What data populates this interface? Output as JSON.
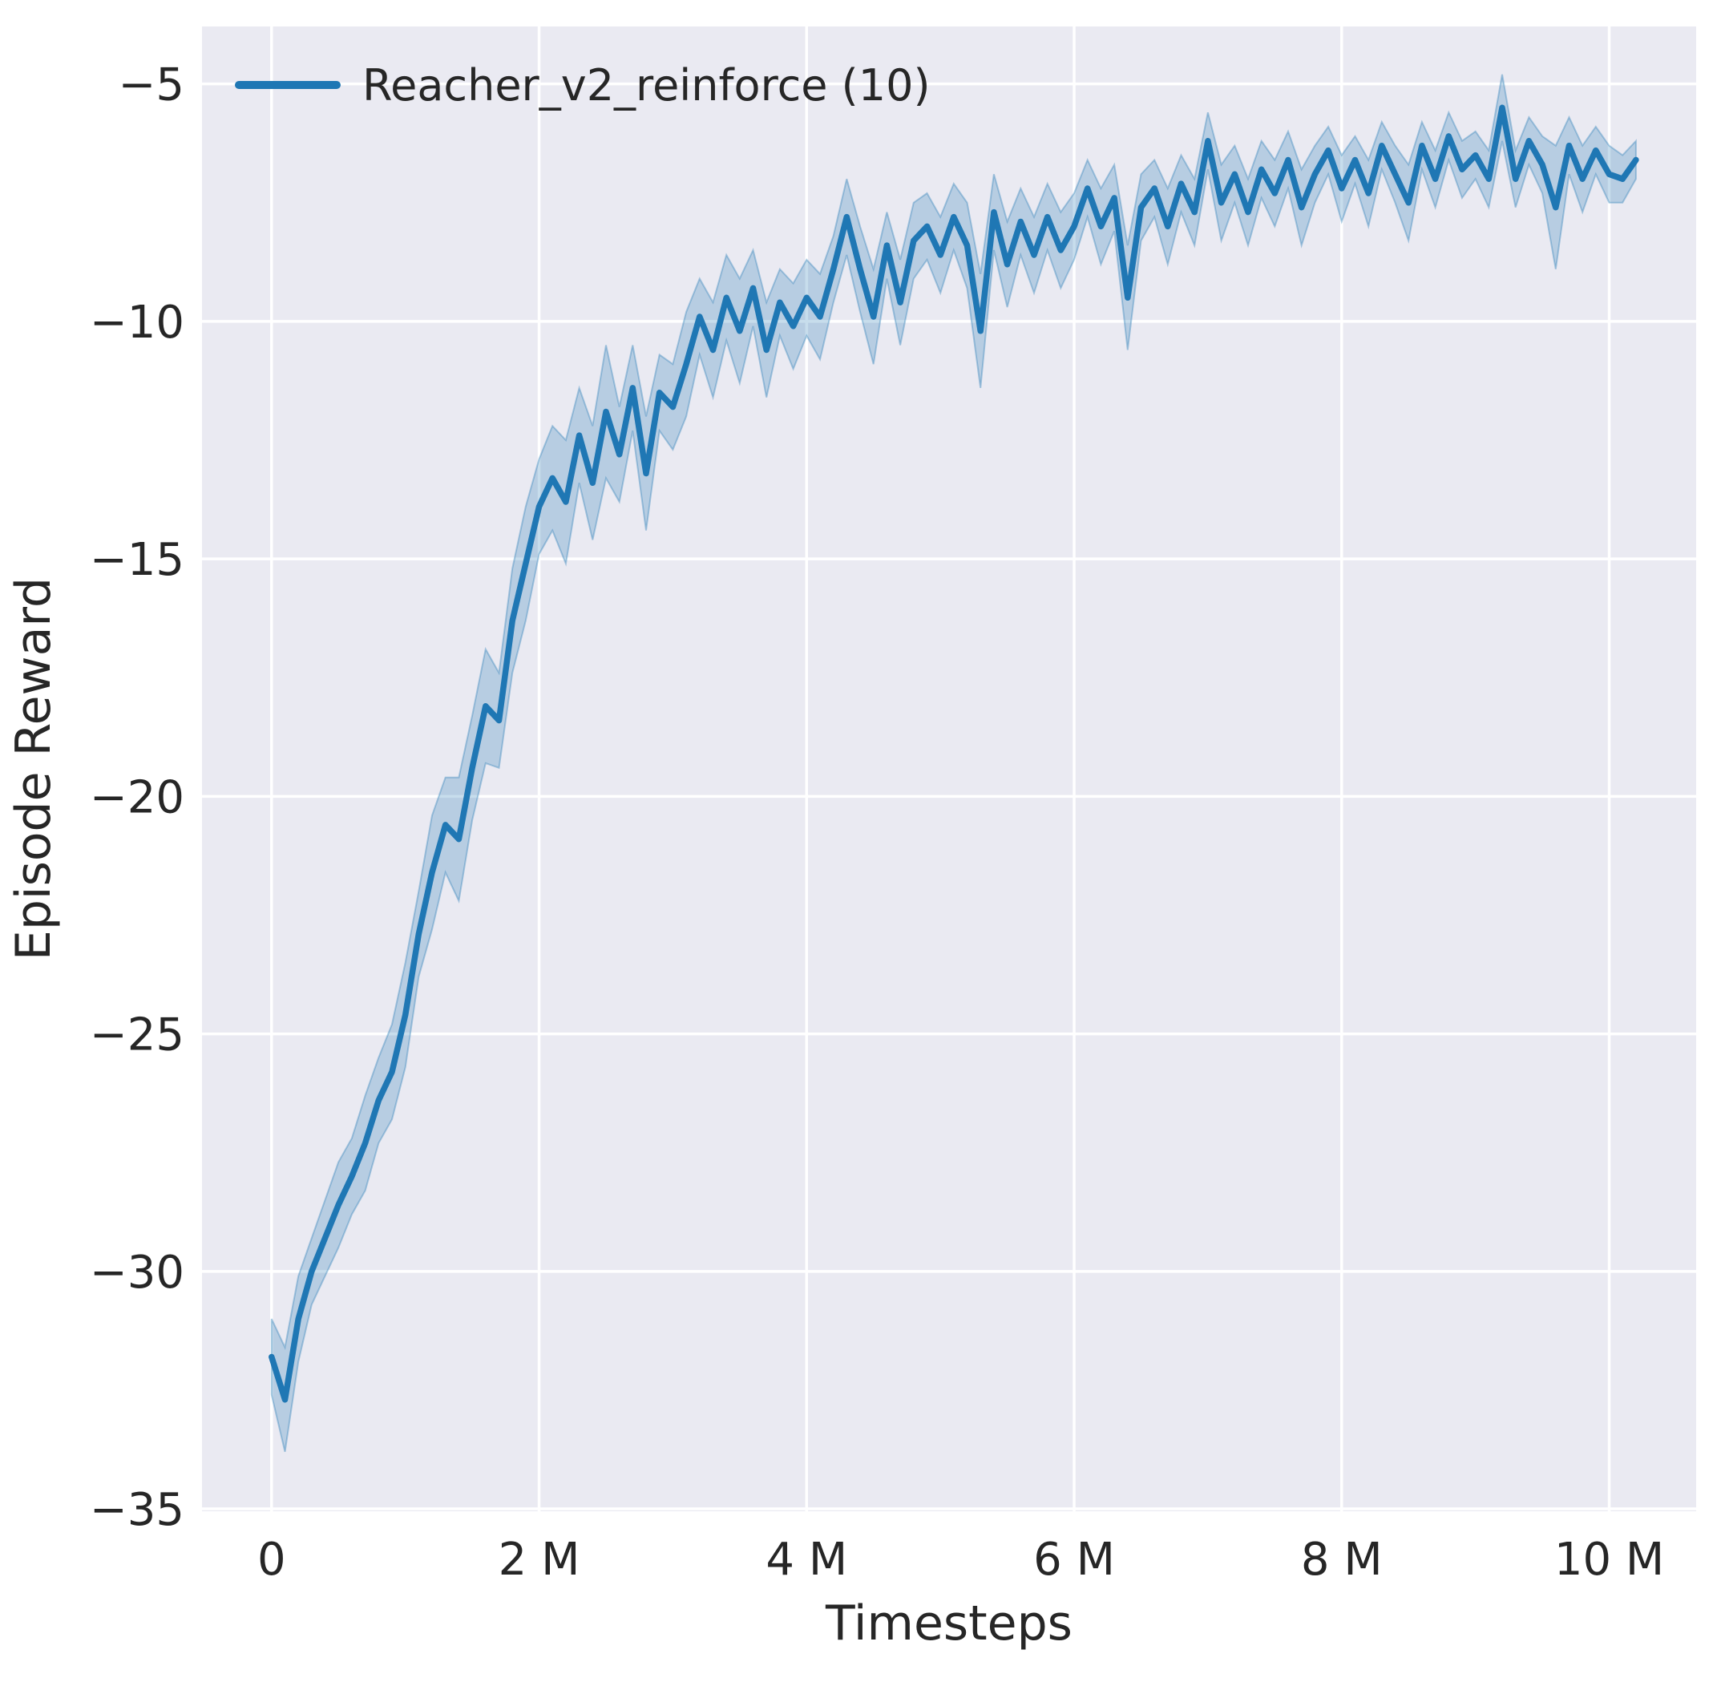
{
  "chart_data": {
    "type": "line",
    "title": "",
    "xlabel": "Timesteps",
    "ylabel": "Episode Reward",
    "legend_position": "upper left",
    "grid": true,
    "legend": [
      {
        "label": "Reacher_v2_reinforce (10)",
        "color": "#1f77b4"
      }
    ],
    "x_unit": "timesteps (millions)",
    "xlim_M": [
      -0.52,
      10.65
    ],
    "ylim": [
      -35.05,
      -3.79
    ],
    "x_ticks": [
      {
        "value_M": 0,
        "label": "0"
      },
      {
        "value_M": 2,
        "label": "2 M"
      },
      {
        "value_M": 4,
        "label": "4 M"
      },
      {
        "value_M": 6,
        "label": "6 M"
      },
      {
        "value_M": 8,
        "label": "8 M"
      },
      {
        "value_M": 10,
        "label": "10 M"
      }
    ],
    "y_ticks": [
      {
        "value": -5,
        "label": "−5"
      },
      {
        "value": -10,
        "label": "−10"
      },
      {
        "value": -15,
        "label": "−15"
      },
      {
        "value": -20,
        "label": "−20"
      },
      {
        "value": -25,
        "label": "−25"
      },
      {
        "value": -30,
        "label": "−30"
      },
      {
        "value": -35,
        "label": "−35"
      }
    ],
    "series": [
      {
        "name": "Reacher_v2_reinforce (10)",
        "x_start_M": 0,
        "x_step_M": 0.1,
        "mean": [
          -31.8,
          -32.7,
          -31.0,
          -30.0,
          -29.3,
          -28.6,
          -28.0,
          -27.3,
          -26.4,
          -25.8,
          -24.6,
          -22.9,
          -21.6,
          -20.6,
          -20.9,
          -19.4,
          -18.1,
          -18.4,
          -16.3,
          -15.1,
          -13.9,
          -13.3,
          -13.8,
          -12.4,
          -13.4,
          -11.9,
          -12.8,
          -11.4,
          -13.2,
          -11.5,
          -11.8,
          -10.9,
          -9.9,
          -10.6,
          -9.5,
          -10.2,
          -9.3,
          -10.6,
          -9.6,
          -10.1,
          -9.5,
          -9.9,
          -8.9,
          -7.8,
          -8.9,
          -9.9,
          -8.4,
          -9.6,
          -8.3,
          -8.0,
          -8.6,
          -7.8,
          -8.4,
          -10.2,
          -7.7,
          -8.8,
          -7.9,
          -8.6,
          -7.8,
          -8.5,
          -8.0,
          -7.2,
          -8.0,
          -7.4,
          -9.5,
          -7.6,
          -7.2,
          -8.0,
          -7.1,
          -7.7,
          -6.2,
          -7.5,
          -6.9,
          -7.7,
          -6.8,
          -7.3,
          -6.6,
          -7.6,
          -6.9,
          -6.4,
          -7.2,
          -6.6,
          -7.3,
          -6.3,
          -6.9,
          -7.5,
          -6.3,
          -7.0,
          -6.1,
          -6.8,
          -6.5,
          -7.0,
          -5.5,
          -7.0,
          -6.2,
          -6.7,
          -7.6,
          -6.3,
          -7.0,
          -6.4,
          -6.9,
          -7.0,
          -6.6
        ],
        "band_halfwidth": [
          0.8,
          1.1,
          0.9,
          0.7,
          0.8,
          0.9,
          0.8,
          1.0,
          0.9,
          1.0,
          1.1,
          0.9,
          1.2,
          1.0,
          1.3,
          1.1,
          1.2,
          1.0,
          1.1,
          1.2,
          1.0,
          1.1,
          1.3,
          1.0,
          1.2,
          1.4,
          1.0,
          0.9,
          1.2,
          0.8,
          0.9,
          1.1,
          0.8,
          1.0,
          0.9,
          1.1,
          0.8,
          1.0,
          0.7,
          0.9,
          0.8,
          0.9,
          0.7,
          0.8,
          0.9,
          1.0,
          0.7,
          0.9,
          0.8,
          0.7,
          0.8,
          0.7,
          0.9,
          1.2,
          0.8,
          0.9,
          0.7,
          0.8,
          0.7,
          0.8,
          0.7,
          0.6,
          0.8,
          0.7,
          1.1,
          0.7,
          0.6,
          0.8,
          0.6,
          0.7,
          0.6,
          0.8,
          0.6,
          0.7,
          0.6,
          0.7,
          0.6,
          0.8,
          0.6,
          0.5,
          0.7,
          0.5,
          0.7,
          0.5,
          0.6,
          0.8,
          0.5,
          0.6,
          0.5,
          0.6,
          0.5,
          0.6,
          0.7,
          0.6,
          0.5,
          0.6,
          1.3,
          0.6,
          0.7,
          0.5,
          0.6,
          0.5,
          0.4
        ]
      }
    ],
    "colors": {
      "line": "#1f77b4",
      "band": "#1f77b4",
      "band_alpha": 0.25,
      "background": "#eaeaf2",
      "grid": "#ffffff",
      "text": "#262626"
    }
  }
}
